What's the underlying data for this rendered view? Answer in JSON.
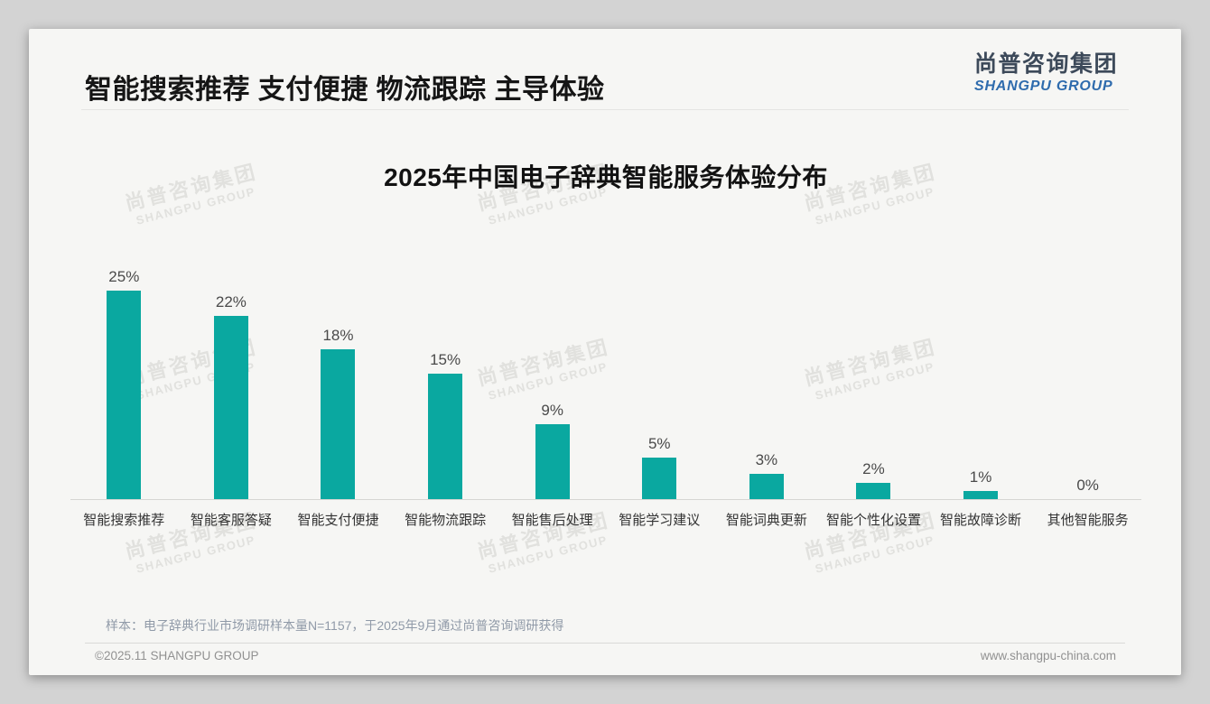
{
  "page": {
    "header_title": "智能搜索推荐 支付便捷 物流跟踪 主导体验",
    "logo": {
      "cn": "尚普咨询集团",
      "en": "SHANGPU GROUP"
    },
    "watermark": {
      "cn": "尚普咨询集团",
      "en": "SHANGPU GROUP"
    },
    "footnote": "样本：电子辞典行业市场调研样本量N=1157，于2025年9月通过尚普咨询调研获得",
    "footer_left": "©2025.11 SHANGPU GROUP",
    "footer_right": "www.shangpu-china.com"
  },
  "colors": {
    "bar": "#0aa8a0",
    "logo_cn": "#3d4a5a",
    "logo_en": "#2e6bad",
    "footnote": "#909aa8"
  },
  "chart_data": {
    "type": "bar",
    "title": "2025年中国电子辞典智能服务体验分布",
    "categories": [
      "智能搜索推荐",
      "智能客服答疑",
      "智能支付便捷",
      "智能物流跟踪",
      "智能售后处理",
      "智能学习建议",
      "智能词典更新",
      "智能个性化设置",
      "智能故障诊断",
      "其他智能服务"
    ],
    "values": [
      25,
      22,
      18,
      15,
      9,
      5,
      3,
      2,
      1,
      0
    ],
    "value_labels": [
      "25%",
      "22%",
      "18%",
      "15%",
      "9%",
      "5%",
      "3%",
      "2%",
      "1%",
      "0%"
    ],
    "xlabel": "",
    "ylabel": "",
    "ylim": [
      0,
      27
    ],
    "grid": false,
    "legend": "none",
    "bar_color": "#0aa8a0"
  }
}
